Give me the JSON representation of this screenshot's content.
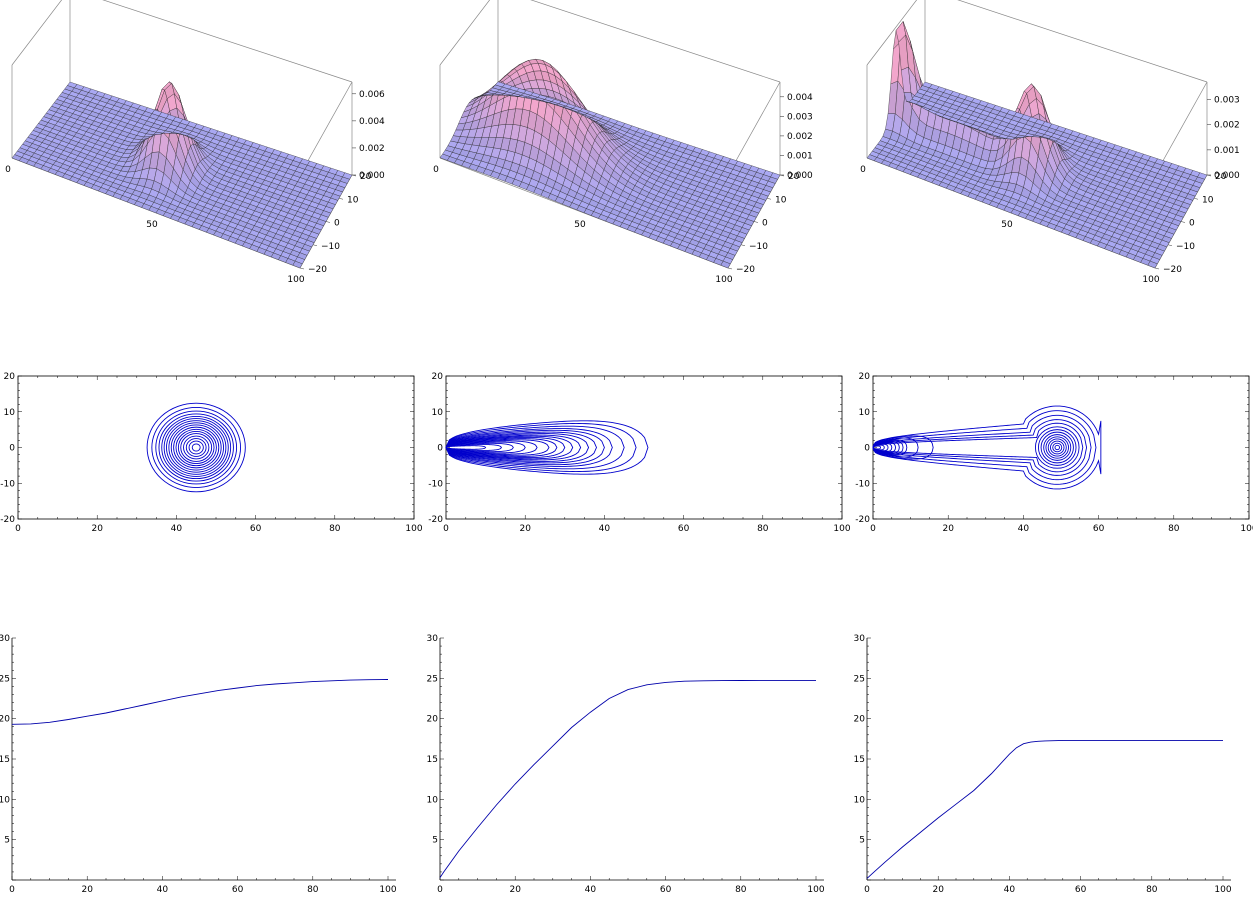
{
  "chart_data": [
    {
      "type": "surface3d",
      "x": [
        0,
        100
      ],
      "y": [
        -20,
        20
      ],
      "zlim": [
        0,
        0.0065
      ],
      "x_ticks": [
        "0",
        "50",
        "100"
      ],
      "y_ticks": [
        "20",
        "10",
        "0",
        "−10",
        "−20"
      ],
      "z_ticks": [
        "0.000",
        "0.002",
        "0.004",
        "0.006"
      ],
      "peaks": [
        {
          "x": 45,
          "y": 0,
          "height": 0.0062,
          "sx": 5,
          "sy": 5
        }
      ],
      "surface_color": "#a9a8f2",
      "peak_color": "#f2a6cc"
    },
    {
      "type": "surface3d",
      "x": [
        0,
        100
      ],
      "y": [
        -20,
        20
      ],
      "zlim": [
        0,
        0.0045
      ],
      "x_ticks": [
        "0",
        "50",
        "100"
      ],
      "y_ticks": [
        "20",
        "10",
        "0",
        "−10",
        "−20"
      ],
      "z_ticks": [
        "0.000",
        "0.001",
        "0.002",
        "0.003",
        "0.004"
      ],
      "peaks": [
        {
          "x": 25,
          "y": 0,
          "height": 0.0043,
          "sx": 14,
          "sy": 7
        }
      ],
      "surface_color": "#a9a8f2",
      "peak_color": "#f2a6cc"
    },
    {
      "type": "surface3d",
      "x": [
        0,
        100
      ],
      "y": [
        -20,
        20
      ],
      "zlim": [
        0,
        0.0035
      ],
      "x_ticks": [
        "0",
        "50",
        "100"
      ],
      "y_ticks": [
        "20",
        "10",
        "0",
        "−10",
        "−20"
      ],
      "z_ticks": [
        "0.000",
        "0.001",
        "0.002",
        "0.003"
      ],
      "peaks": [
        {
          "x": 2,
          "y": 0,
          "height": 0.0033,
          "sx": 4,
          "sy": 3
        },
        {
          "x": 20,
          "y": 0,
          "height": 0.0012,
          "sx": 18,
          "sy": 3
        },
        {
          "x": 48,
          "y": 0,
          "height": 0.003,
          "sx": 5,
          "sy": 5
        }
      ],
      "surface_color": "#a9a8f2",
      "peak_color": "#f2a6cc"
    },
    {
      "type": "contour",
      "xlim": [
        0,
        100
      ],
      "ylim": [
        -20,
        20
      ],
      "x_ticks": [
        0,
        20,
        40,
        60,
        80,
        100
      ],
      "y_ticks": [
        -20,
        -10,
        0,
        10,
        20
      ],
      "line_color": "#0000cc",
      "contours": [
        {
          "kind": "circle",
          "cx": 45,
          "cy": 0,
          "r": [
            1,
            1.8,
            2.5,
            3.2,
            3.9,
            4.5,
            5.1,
            5.7,
            6.3,
            6.9,
            7.5,
            8.1,
            8.7,
            9.4,
            10.2,
            11.2,
            12.4
          ]
        }
      ]
    },
    {
      "type": "contour",
      "xlim": [
        0,
        100
      ],
      "ylim": [
        -20,
        20
      ],
      "x_ticks": [
        0,
        20,
        40,
        60,
        80,
        100
      ],
      "y_ticks": [
        -20,
        -10,
        0,
        10,
        20
      ],
      "line_color": "#0000cc",
      "contours": [
        {
          "kind": "teardrop",
          "x0": 0,
          "x1": [
            10,
            14,
            17,
            20,
            23,
            26,
            28,
            30,
            32,
            34,
            36,
            38,
            40,
            42,
            45,
            48,
            51
          ],
          "w": [
            0.6,
            1,
            1.4,
            1.8,
            2.2,
            2.6,
            3,
            3.4,
            3.8,
            4.2,
            4.7,
            5.2,
            5.8,
            6.4,
            7.2,
            8.1,
            9
          ]
        }
      ]
    },
    {
      "type": "contour",
      "xlim": [
        0,
        100
      ],
      "ylim": [
        -20,
        20
      ],
      "x_ticks": [
        0,
        20,
        40,
        60,
        80,
        100
      ],
      "y_ticks": [
        -20,
        -10,
        0,
        10,
        20
      ],
      "line_color": "#0000cc",
      "contours": [
        {
          "kind": "teardrop",
          "x0": 0,
          "x1": [
            2,
            3,
            4,
            5,
            6,
            7,
            8,
            9,
            12,
            16
          ],
          "w": [
            0.5,
            0.8,
            1.1,
            1.4,
            1.7,
            2,
            2.3,
            2.6,
            3.2,
            3.9
          ]
        },
        {
          "kind": "circle",
          "cx": 49,
          "cy": 0,
          "r": [
            0.6,
            1.2,
            1.8,
            2.4,
            3,
            3.6,
            4.3,
            5,
            5.8
          ]
        },
        {
          "kind": "dumbbell",
          "x0": 0,
          "cx": 49,
          "r": [
            6.8,
            7.8,
            9,
            10.3,
            11.6
          ],
          "neck": [
            2.8,
            3.5,
            4.3,
            5.4,
            6.6
          ]
        }
      ]
    },
    {
      "type": "line",
      "xlim": [
        0,
        100
      ],
      "ylim": [
        0,
        30
      ],
      "x_ticks": [
        0,
        20,
        40,
        60,
        80,
        100
      ],
      "y_ticks": [
        5,
        10,
        15,
        20,
        25,
        30
      ],
      "line_color": "#0000aa",
      "series": [
        {
          "x": [
            0,
            5,
            10,
            15,
            20,
            25,
            30,
            35,
            40,
            45,
            50,
            55,
            60,
            65,
            70,
            75,
            80,
            85,
            90,
            95,
            100
          ],
          "y": [
            19.3,
            19.35,
            19.55,
            19.9,
            20.3,
            20.7,
            21.2,
            21.7,
            22.2,
            22.7,
            23.1,
            23.5,
            23.8,
            24.1,
            24.3,
            24.45,
            24.6,
            24.7,
            24.78,
            24.83,
            24.86
          ]
        }
      ]
    },
    {
      "type": "line",
      "xlim": [
        0,
        100
      ],
      "ylim": [
        0,
        30
      ],
      "x_ticks": [
        0,
        20,
        40,
        60,
        80,
        100
      ],
      "y_ticks": [
        5,
        10,
        15,
        20,
        25,
        30
      ],
      "line_color": "#0000aa",
      "series": [
        {
          "x": [
            0,
            1,
            5,
            10,
            15,
            20,
            25,
            30,
            35,
            40,
            45,
            50,
            55,
            60,
            65,
            70,
            75,
            80,
            85,
            90,
            95,
            100
          ],
          "y": [
            0.3,
            1,
            3.6,
            6.5,
            9.3,
            11.9,
            14.3,
            16.6,
            18.9,
            20.8,
            22.5,
            23.6,
            24.2,
            24.5,
            24.65,
            24.7,
            24.72,
            24.73,
            24.74,
            24.74,
            24.74,
            24.74
          ]
        }
      ]
    },
    {
      "type": "line",
      "xlim": [
        0,
        100
      ],
      "ylim": [
        0,
        30
      ],
      "x_ticks": [
        0,
        20,
        40,
        60,
        80,
        100
      ],
      "y_ticks": [
        5,
        10,
        15,
        20,
        25,
        30
      ],
      "line_color": "#0000aa",
      "series": [
        {
          "x": [
            0,
            2,
            5,
            10,
            15,
            20,
            25,
            30,
            35,
            40,
            42,
            44,
            46,
            48,
            50,
            55,
            60,
            70,
            80,
            90,
            100
          ],
          "y": [
            0.2,
            1.0,
            2.2,
            4.1,
            5.9,
            7.7,
            9.4,
            11.1,
            13.2,
            15.6,
            16.4,
            16.9,
            17.1,
            17.2,
            17.25,
            17.3,
            17.3,
            17.3,
            17.3,
            17.3,
            17.3
          ]
        }
      ]
    }
  ]
}
